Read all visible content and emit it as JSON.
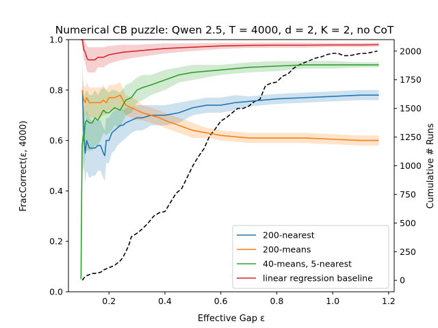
{
  "chart_data": {
    "type": "line",
    "title": "Numerical CB puzzle: Qwen 2.5, T = 4000, d = 2, K = 2, no CoT",
    "xlabel": "Effective Gap ε",
    "ylabel": "FracCorrect(ε, 4000)",
    "y2label": "Cumulative # Runs",
    "xlim": [
      0.055,
      1.22
    ],
    "ylim": [
      0,
      1.0
    ],
    "y2lim": [
      -100,
      2100
    ],
    "xticks": [
      0.2,
      0.4,
      0.6,
      0.8,
      1.0,
      1.2
    ],
    "xtick_labels": [
      "0.2",
      "0.4",
      "0.6",
      "0.8",
      "1.0",
      "1.2"
    ],
    "yticks": [
      0.0,
      0.2,
      0.4,
      0.6,
      0.8,
      1.0
    ],
    "ytick_labels": [
      "0.0",
      "0.2",
      "0.4",
      "0.6",
      "0.8",
      "1.0"
    ],
    "y2ticks": [
      0,
      250,
      500,
      750,
      1000,
      1250,
      1500,
      1750,
      2000
    ],
    "y2tick_labels": [
      "0",
      "250",
      "500",
      "750",
      "1000",
      "1250",
      "1500",
      "1750",
      "2000"
    ],
    "legend_position": "lower-right",
    "series": [
      {
        "name": "200-nearest",
        "color": "#1f77b4",
        "x": [
          0.105,
          0.11,
          0.115,
          0.12,
          0.13,
          0.14,
          0.15,
          0.16,
          0.17,
          0.18,
          0.185,
          0.19,
          0.2,
          0.21,
          0.22,
          0.23,
          0.24,
          0.25,
          0.26,
          0.28,
          0.3,
          0.32,
          0.35,
          0.38,
          0.4,
          0.45,
          0.5,
          0.55,
          0.6,
          0.65,
          0.7,
          0.75,
          0.8,
          0.9,
          1.0,
          1.1,
          1.165
        ],
        "values": [
          0.8,
          0.62,
          0.55,
          0.6,
          0.57,
          0.57,
          0.57,
          0.58,
          0.58,
          0.55,
          0.54,
          0.6,
          0.6,
          0.63,
          0.64,
          0.65,
          0.66,
          0.66,
          0.67,
          0.68,
          0.69,
          0.69,
          0.7,
          0.7,
          0.7,
          0.71,
          0.73,
          0.74,
          0.74,
          0.75,
          0.755,
          0.76,
          0.765,
          0.77,
          0.775,
          0.78,
          0.78
        ],
        "band": [
          0.12,
          0.12,
          0.12,
          0.12,
          0.12,
          0.11,
          0.11,
          0.1,
          0.1,
          0.1,
          0.1,
          0.09,
          0.09,
          0.08,
          0.08,
          0.07,
          0.07,
          0.06,
          0.06,
          0.05,
          0.05,
          0.05,
          0.04,
          0.04,
          0.04,
          0.04,
          0.03,
          0.03,
          0.03,
          0.03,
          0.02,
          0.02,
          0.02,
          0.02,
          0.02,
          0.02,
          0.02
        ]
      },
      {
        "name": "200-means",
        "color": "#ff7f0e",
        "x": [
          0.105,
          0.11,
          0.115,
          0.12,
          0.13,
          0.14,
          0.15,
          0.16,
          0.17,
          0.18,
          0.19,
          0.2,
          0.22,
          0.24,
          0.26,
          0.28,
          0.3,
          0.32,
          0.35,
          0.38,
          0.4,
          0.45,
          0.5,
          0.55,
          0.6,
          0.65,
          0.7,
          0.75,
          0.8,
          0.9,
          1.0,
          1.1,
          1.165
        ],
        "values": [
          0.8,
          0.76,
          0.75,
          0.77,
          0.75,
          0.75,
          0.75,
          0.75,
          0.75,
          0.76,
          0.75,
          0.77,
          0.77,
          0.78,
          0.74,
          0.73,
          0.72,
          0.71,
          0.7,
          0.69,
          0.68,
          0.66,
          0.64,
          0.63,
          0.62,
          0.615,
          0.61,
          0.61,
          0.61,
          0.61,
          0.605,
          0.6,
          0.6
        ],
        "band": [
          0.06,
          0.06,
          0.06,
          0.06,
          0.06,
          0.06,
          0.06,
          0.06,
          0.06,
          0.06,
          0.05,
          0.05,
          0.05,
          0.05,
          0.04,
          0.04,
          0.04,
          0.03,
          0.03,
          0.03,
          0.03,
          0.03,
          0.03,
          0.02,
          0.02,
          0.02,
          0.02,
          0.02,
          0.02,
          0.02,
          0.02,
          0.02,
          0.02
        ]
      },
      {
        "name": "40-means, 5-nearest",
        "color": "#2ca02c",
        "x": [
          0.1,
          0.102,
          0.104,
          0.106,
          0.108,
          0.11,
          0.115,
          0.12,
          0.13,
          0.14,
          0.15,
          0.16,
          0.17,
          0.18,
          0.19,
          0.2,
          0.21,
          0.22,
          0.24,
          0.26,
          0.28,
          0.3,
          0.32,
          0.35,
          0.4,
          0.45,
          0.5,
          0.6,
          0.7,
          0.8,
          0.9,
          1.0,
          1.1,
          1.165
        ],
        "values": [
          0.05,
          0.35,
          0.58,
          0.6,
          0.62,
          0.6,
          0.67,
          0.68,
          0.67,
          0.67,
          0.69,
          0.68,
          0.7,
          0.72,
          0.71,
          0.71,
          0.72,
          0.73,
          0.72,
          0.76,
          0.77,
          0.8,
          0.81,
          0.82,
          0.84,
          0.86,
          0.87,
          0.88,
          0.89,
          0.895,
          0.9,
          0.9,
          0.9,
          0.9
        ],
        "band": [
          0.04,
          0.1,
          0.12,
          0.12,
          0.12,
          0.12,
          0.12,
          0.12,
          0.11,
          0.11,
          0.11,
          0.1,
          0.1,
          0.09,
          0.09,
          0.08,
          0.08,
          0.07,
          0.07,
          0.06,
          0.06,
          0.05,
          0.05,
          0.04,
          0.04,
          0.03,
          0.03,
          0.02,
          0.02,
          0.02,
          0.015,
          0.015,
          0.01,
          0.01
        ]
      },
      {
        "name": "linear regression baseline",
        "color": "#d62728",
        "x": [
          0.1,
          0.105,
          0.11,
          0.115,
          0.12,
          0.125,
          0.13,
          0.14,
          0.15,
          0.16,
          0.17,
          0.18,
          0.2,
          0.25,
          0.3,
          0.4,
          0.5,
          0.6,
          0.7,
          0.8,
          0.9,
          1.0,
          1.1,
          1.165
        ],
        "values": [
          1.0,
          1.0,
          0.96,
          0.95,
          0.93,
          0.92,
          0.92,
          0.92,
          0.92,
          0.93,
          0.93,
          0.93,
          0.94,
          0.95,
          0.955,
          0.965,
          0.97,
          0.975,
          0.977,
          0.978,
          0.978,
          0.979,
          0.979,
          0.98
        ],
        "band": [
          0.0,
          0.03,
          0.04,
          0.04,
          0.05,
          0.05,
          0.05,
          0.05,
          0.05,
          0.04,
          0.04,
          0.04,
          0.035,
          0.03,
          0.025,
          0.02,
          0.015,
          0.012,
          0.01,
          0.01,
          0.01,
          0.008,
          0.008,
          0.008
        ]
      }
    ],
    "secondary_series": {
      "name": "Cumulative # Runs",
      "axis": "right",
      "color": "#000000",
      "style": "dashed",
      "x": [
        0.105,
        0.11,
        0.12,
        0.13,
        0.14,
        0.15,
        0.17,
        0.18,
        0.19,
        0.2,
        0.22,
        0.24,
        0.25,
        0.27,
        0.28,
        0.3,
        0.32,
        0.34,
        0.36,
        0.38,
        0.4,
        0.42,
        0.44,
        0.46,
        0.48,
        0.5,
        0.52,
        0.54,
        0.56,
        0.58,
        0.6,
        0.62,
        0.64,
        0.66,
        0.68,
        0.7,
        0.72,
        0.74,
        0.76,
        0.78,
        0.8,
        0.82,
        0.84,
        0.86,
        0.88,
        0.9,
        0.92,
        0.94,
        0.96,
        0.98,
        1.0,
        1.02,
        1.04,
        1.06,
        1.08,
        1.1,
        1.12,
        1.14,
        1.16
      ],
      "values": [
        0,
        20,
        40,
        50,
        60,
        60,
        70,
        90,
        100,
        110,
        130,
        170,
        200,
        300,
        380,
        410,
        450,
        500,
        560,
        590,
        600,
        680,
        760,
        800,
        900,
        1000,
        1080,
        1150,
        1260,
        1320,
        1390,
        1420,
        1460,
        1500,
        1500,
        1520,
        1560,
        1580,
        1700,
        1720,
        1730,
        1780,
        1800,
        1850,
        1880,
        1900,
        1920,
        1940,
        1950,
        1970,
        1980,
        1980,
        1960,
        1960,
        1970,
        1980,
        1980,
        1990,
        2000
      ]
    }
  }
}
